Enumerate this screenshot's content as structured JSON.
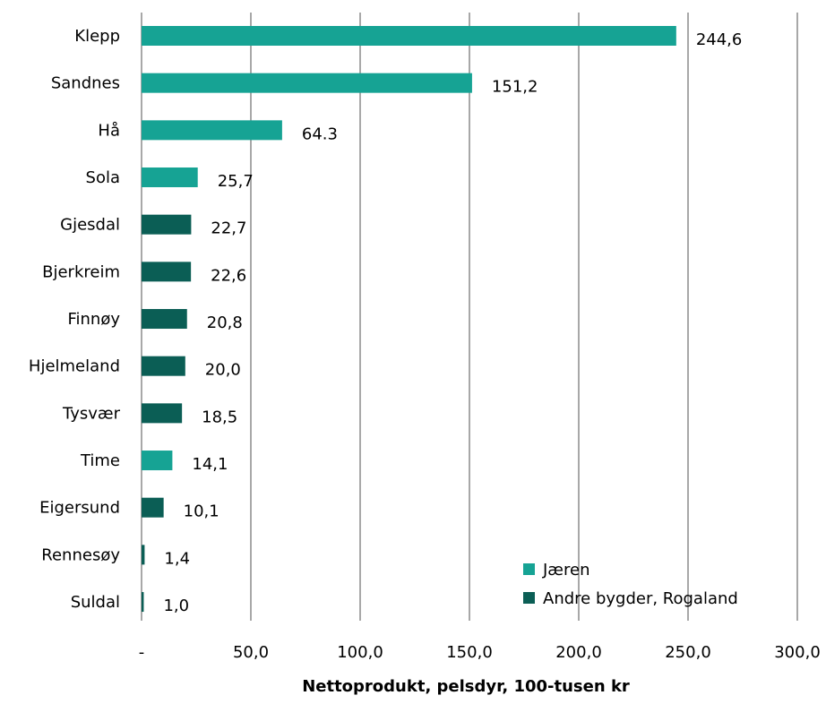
{
  "chart_data": {
    "type": "bar",
    "orientation": "horizontal",
    "categories": [
      "Klepp",
      "Sandnes",
      "Hå",
      "Sola",
      "Gjesdal",
      "Bjerkreim",
      "Finnøy",
      "Hjelmeland",
      "Tysvær",
      "Time",
      "Eigersund",
      "Rennesøy",
      "Suldal"
    ],
    "values": [
      244.6,
      151.2,
      64.3,
      25.7,
      22.7,
      22.6,
      20.8,
      20.0,
      18.5,
      14.1,
      10.1,
      1.4,
      1.0
    ],
    "value_labels": [
      "244,6",
      "151,2",
      "64.3",
      "25,7",
      "22,7",
      "22,6",
      "20,8",
      "20,0",
      "18,5",
      "14,1",
      "10,1",
      "1,4",
      "1,0"
    ],
    "groups": [
      "Jæren",
      "Jæren",
      "Jæren",
      "Jæren",
      "Andre bygder, Rogaland",
      "Andre bygder, Rogaland",
      "Andre bygder, Rogaland",
      "Andre bygder, Rogaland",
      "Andre bygder, Rogaland",
      "Jæren",
      "Andre bygder, Rogaland",
      "Andre bygder, Rogaland",
      "Andre bygder, Rogaland"
    ],
    "series": [
      {
        "name": "Jæren",
        "color": "#16a394"
      },
      {
        "name": "Andre bygder, Rogaland",
        "color": "#0b5e55"
      }
    ],
    "xlabel": "Nettoprodukt, pelsdyr, 100-tusen kr",
    "xlim": [
      0,
      300
    ],
    "xticks": [
      0,
      50,
      100,
      150,
      200,
      250,
      300
    ],
    "xtick_labels": [
      "-",
      "50,0",
      "100,0",
      "150,0",
      "200,0",
      "250,0",
      "300,0"
    ],
    "grid": "vertical",
    "legend_position": "bottom-right"
  }
}
